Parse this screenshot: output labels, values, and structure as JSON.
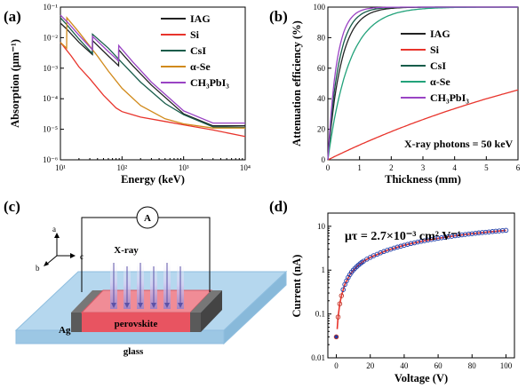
{
  "panels": {
    "a": {
      "label": "(a)"
    },
    "b": {
      "label": "(b)"
    },
    "c": {
      "label": "(c)"
    },
    "d": {
      "label": "(d)"
    }
  },
  "colors": {
    "IAG": "#222222",
    "Si": "#e8342c",
    "CsI": "#175c4a",
    "a-Se": "#d18a1b",
    "CH3PbI3": "#9a44c4",
    "a-Se-b": "#22a27a",
    "fit": "#e8342c",
    "points": "#1f3da8"
  },
  "diagram": {
    "meter": "A",
    "xray": "X-ray",
    "electrode": "Ag",
    "absorber": "perovskite",
    "substrate": "glass",
    "axes": {
      "a": "a",
      "b": "b",
      "c": "c"
    }
  },
  "chart_data": [
    {
      "type": "line",
      "panel": "a",
      "xlabel": "Energy (keV)",
      "ylabel": "Absorption (μm⁻¹)",
      "xscale": "log",
      "yscale": "log",
      "xlim": [
        10,
        10000
      ],
      "ylim": [
        1e-06,
        0.1
      ],
      "xticks": [
        {
          "v": 10,
          "l": "10¹"
        },
        {
          "v": 100,
          "l": "10²"
        },
        {
          "v": 1000,
          "l": "10³"
        },
        {
          "v": 10000,
          "l": "10⁴"
        }
      ],
      "yticks": [
        {
          "v": 1e-06,
          "l": "10⁻⁶"
        },
        {
          "v": 1e-05,
          "l": "10⁻⁵"
        },
        {
          "v": 0.0001,
          "l": "10⁻⁴"
        },
        {
          "v": 0.001,
          "l": "10⁻³"
        },
        {
          "v": 0.01,
          "l": "10⁻²"
        },
        {
          "v": 0.1,
          "l": "10⁻¹"
        }
      ],
      "legend_position": "top-right",
      "series": [
        {
          "name": "IAG",
          "color_key": "IAG",
          "x": [
            10,
            13,
            20,
            33,
            33.2,
            60,
            88,
            88.3,
            150,
            300,
            1000,
            3000,
            10000
          ],
          "y": [
            0.03,
            0.018,
            0.007,
            0.0028,
            0.008,
            0.0025,
            0.0012,
            0.004,
            0.0012,
            0.00028,
            3.2e-05,
            1.3e-05,
            1.3e-05
          ]
        },
        {
          "name": "Si",
          "color_key": "Si",
          "x": [
            10,
            15,
            20,
            30,
            50,
            80,
            100,
            200,
            500,
            1000,
            3000,
            10000
          ],
          "y": [
            0.007,
            0.0025,
            0.0011,
            0.00045,
            0.00013,
            5e-05,
            3.8e-05,
            2.5e-05,
            1.8e-05,
            1.4e-05,
            9.5e-06,
            5.8e-06
          ]
        },
        {
          "name": "CsI",
          "color_key": "CsI",
          "x": [
            10,
            13,
            20,
            33,
            33.2,
            60,
            100,
            200,
            500,
            1000,
            3000,
            10000
          ],
          "y": [
            0.045,
            0.025,
            0.009,
            0.003,
            0.013,
            0.0045,
            0.0015,
            0.00035,
            7e-05,
            3e-05,
            1.2e-05,
            1.15e-05
          ]
        },
        {
          "name": "α-Se",
          "color_key": "a-Se",
          "x": [
            10,
            12.6,
            12.7,
            20,
            40,
            60,
            100,
            200,
            500,
            1000,
            3000,
            10000
          ],
          "y": [
            0.007,
            0.0045,
            0.045,
            0.015,
            0.0025,
            0.0008,
            0.00022,
            6e-05,
            2.2e-05,
            1.5e-05,
            1.1e-05,
            1.1e-05
          ]
        },
        {
          "name": "CH₃PbI₃",
          "color_key": "CH3PbI3",
          "x": [
            10,
            13,
            20,
            33,
            33.2,
            60,
            88,
            88.3,
            150,
            300,
            1000,
            3000,
            10000
          ],
          "y": [
            0.055,
            0.032,
            0.012,
            0.004,
            0.011,
            0.0035,
            0.0017,
            0.0055,
            0.0016,
            0.00035,
            4e-05,
            1.6e-05,
            1.6e-05
          ]
        }
      ]
    },
    {
      "type": "line",
      "panel": "b",
      "xlabel": "Thickness (mm)",
      "ylabel": "Attenuation efficiency (%)",
      "xlim": [
        0,
        6
      ],
      "ylim": [
        0,
        100
      ],
      "xticks": [
        0,
        1,
        2,
        3,
        4,
        5,
        6
      ],
      "yticks": [
        0,
        20,
        40,
        60,
        80,
        100
      ],
      "legend_position": "top-right",
      "annotation": "X-ray photons = 50 keV",
      "series": [
        {
          "name": "IAG",
          "color_key": "IAG",
          "mu": 2.4
        },
        {
          "name": "Si",
          "color_key": "Si",
          "mu": 0.102
        },
        {
          "name": "CsI",
          "color_key": "CsI",
          "mu": 2.9
        },
        {
          "name": "α-Se",
          "color_key": "a-Se-b",
          "mu": 1.5
        },
        {
          "name": "CH₃PbI₃",
          "color_key": "CH3PbI3",
          "mu": 3.6
        }
      ]
    },
    {
      "type": "scatter",
      "panel": "d",
      "xlabel": "Voltage (V)",
      "ylabel": "Current (nA)",
      "yscale": "log",
      "xlim": [
        -5,
        105
      ],
      "ylim": [
        0.01,
        20
      ],
      "xticks": [
        0,
        20,
        40,
        60,
        80,
        100
      ],
      "yticks": [
        {
          "v": 0.01,
          "l": "0.01"
        },
        {
          "v": 0.1,
          "l": "0.1"
        },
        {
          "v": 1,
          "l": "1"
        },
        {
          "v": 10,
          "l": "10"
        }
      ],
      "annotation": "μτ = 2.7×10⁻³ cm² V⁻¹",
      "points_x": [
        0,
        1,
        2,
        3,
        4,
        5,
        6,
        7,
        8,
        9,
        10,
        11,
        12,
        13,
        14,
        15,
        16,
        18,
        20,
        22,
        24,
        26,
        28,
        30,
        32,
        34,
        36,
        38,
        40,
        42,
        44,
        46,
        48,
        50,
        52,
        54,
        56,
        58,
        60,
        62,
        64,
        66,
        68,
        70,
        72,
        74,
        76,
        78,
        80,
        82,
        84,
        86,
        88,
        90,
        92,
        94,
        96,
        98,
        100
      ],
      "points_y": [
        0.03,
        0.085,
        0.17,
        0.26,
        0.36,
        0.47,
        0.57,
        0.68,
        0.79,
        0.9,
        1.0,
        1.1,
        1.2,
        1.3,
        1.4,
        1.5,
        1.6,
        1.78,
        1.95,
        2.13,
        2.3,
        2.48,
        2.65,
        2.83,
        3.0,
        3.18,
        3.35,
        3.52,
        3.7,
        3.87,
        4.04,
        4.2,
        4.37,
        4.53,
        4.69,
        4.85,
        5.01,
        5.17,
        5.33,
        5.48,
        5.63,
        5.78,
        5.93,
        6.08,
        6.23,
        6.37,
        6.51,
        6.65,
        6.79,
        6.93,
        7.06,
        7.19,
        7.32,
        7.45,
        7.58,
        7.71,
        7.84,
        7.97,
        8.1
      ],
      "fit_x": [
        0.5,
        1,
        2,
        3,
        5,
        8,
        12,
        16,
        20,
        30,
        40,
        50,
        60,
        70,
        80,
        90,
        100
      ],
      "fit_y": [
        0.045,
        0.085,
        0.17,
        0.26,
        0.47,
        0.79,
        1.2,
        1.6,
        1.95,
        2.83,
        3.7,
        4.53,
        5.33,
        6.08,
        6.79,
        7.45,
        8.1
      ]
    }
  ]
}
